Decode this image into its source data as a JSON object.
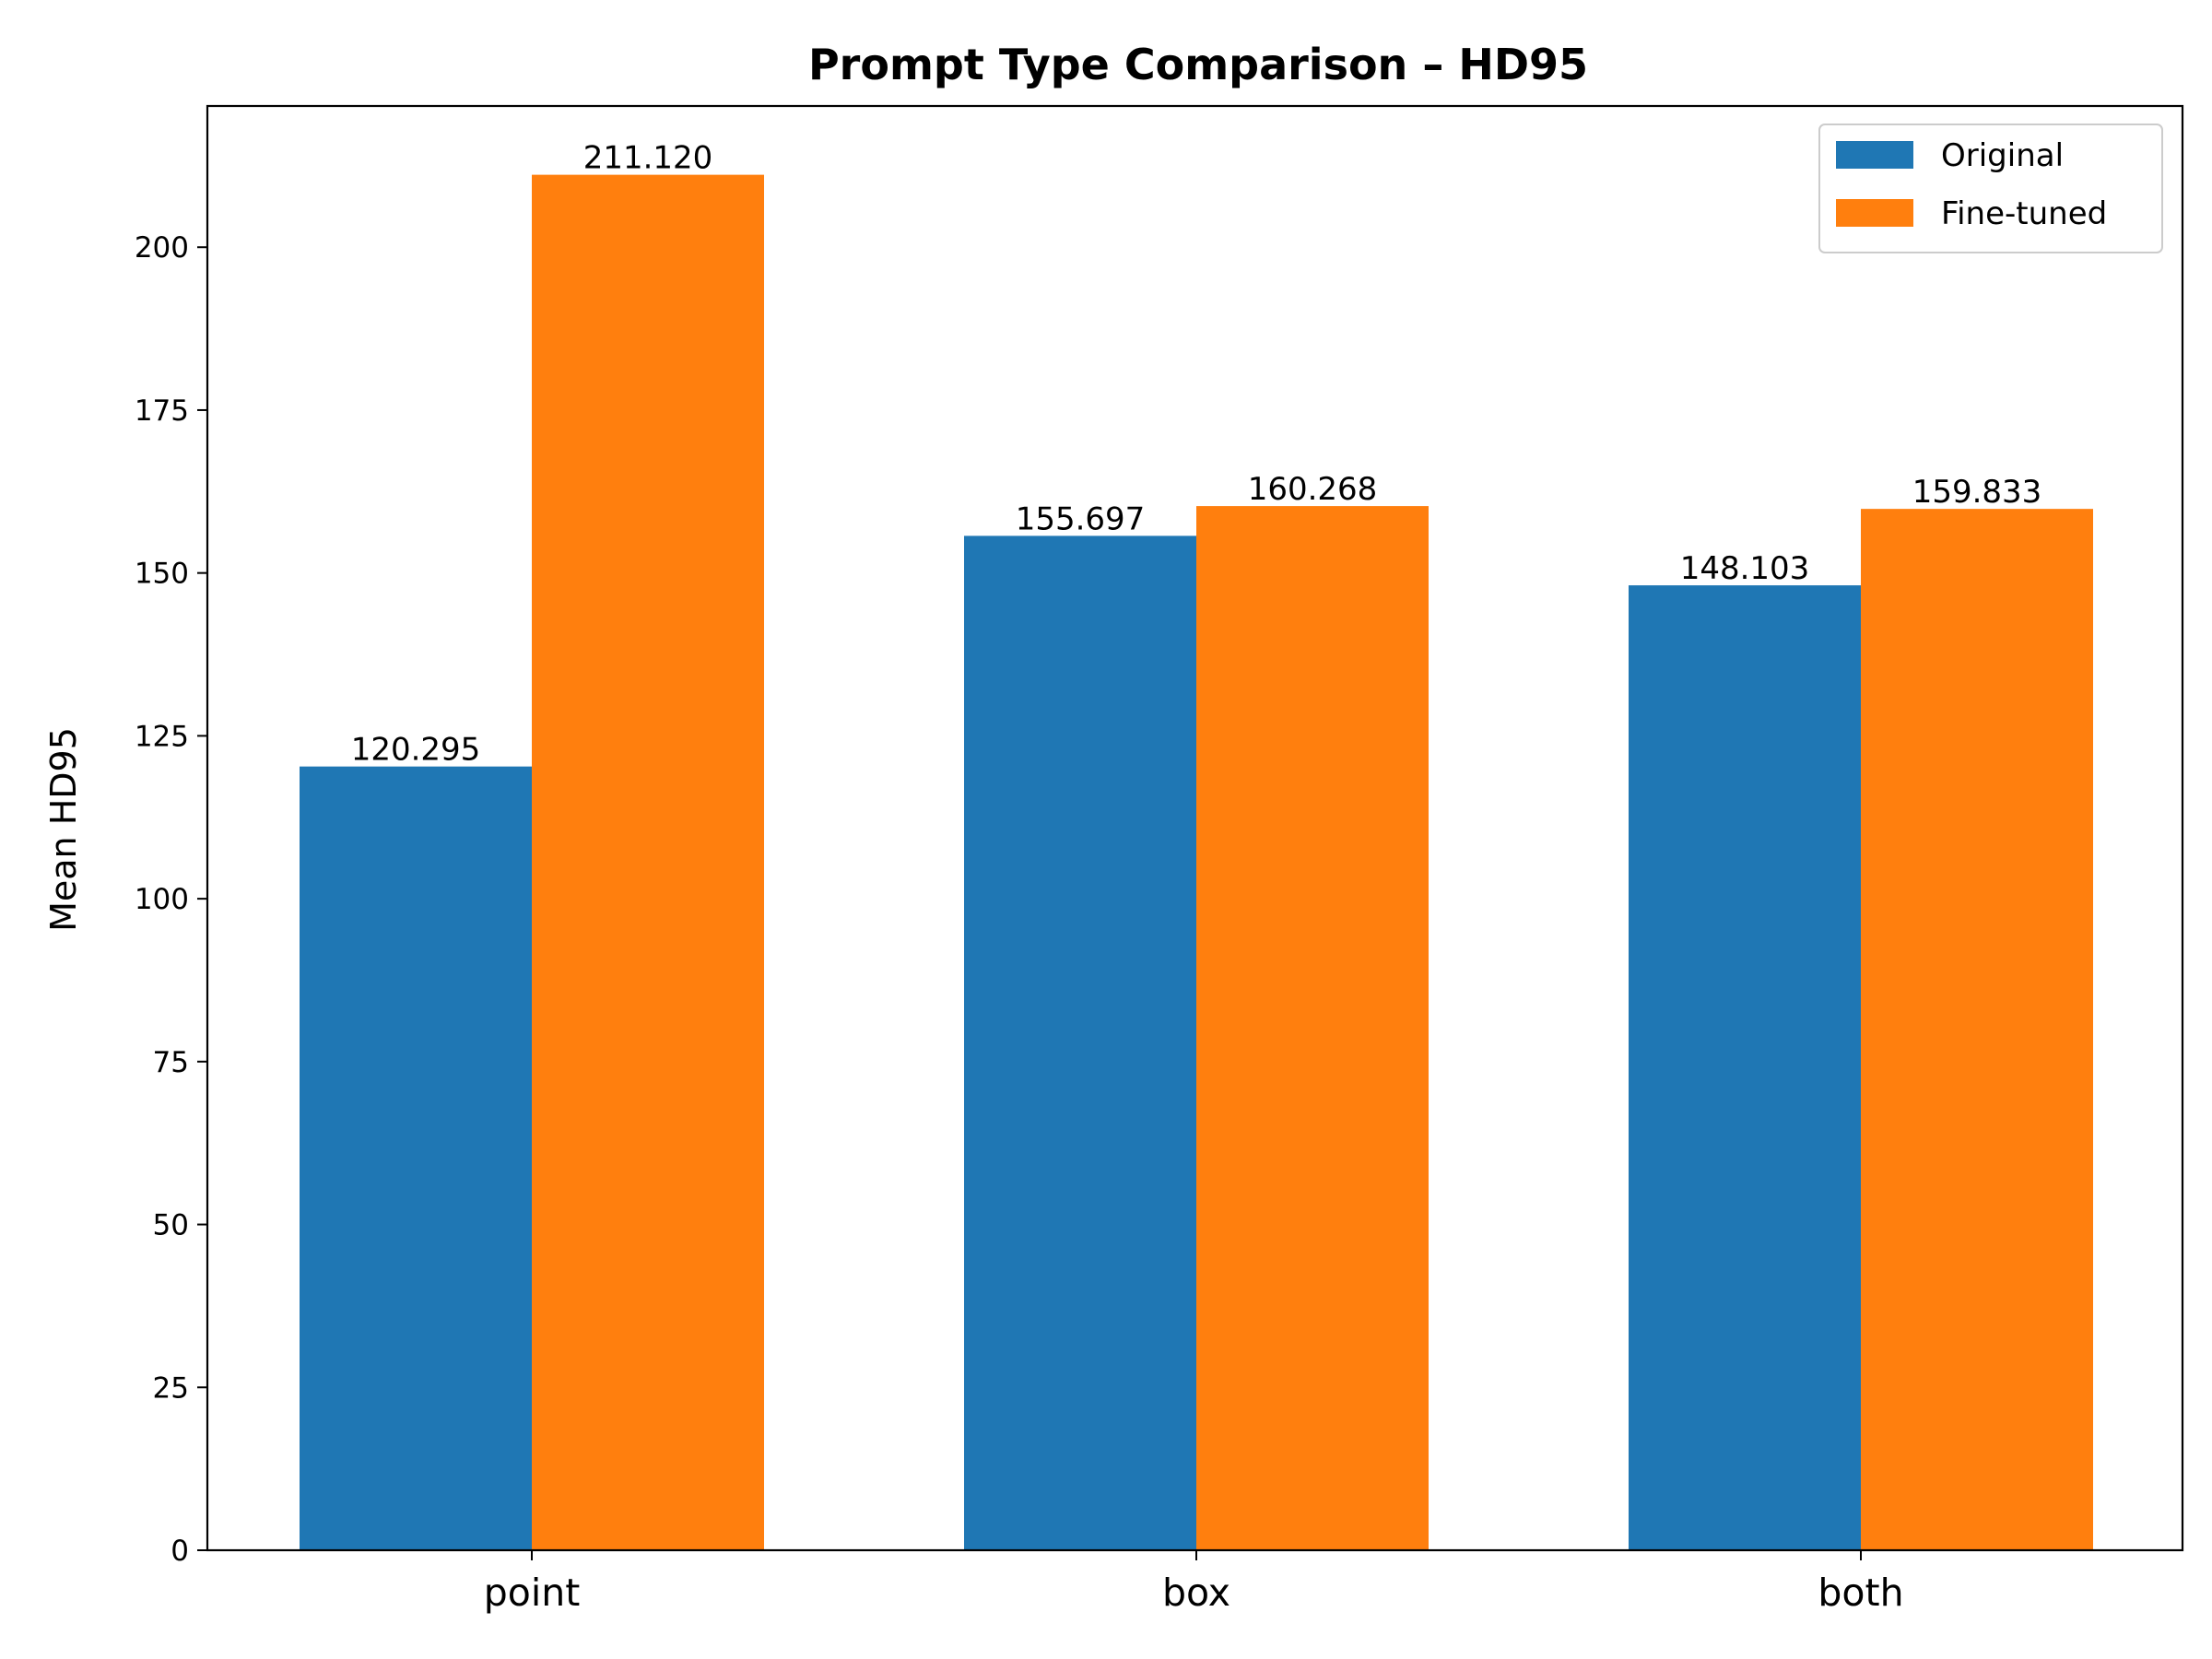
{
  "chart_data": {
    "type": "bar",
    "title": "Prompt Type Comparison – HD95",
    "xlabel": "",
    "ylabel": "Mean HD95",
    "categories": [
      "point",
      "box",
      "both"
    ],
    "series": [
      {
        "name": "Original",
        "color": "#1f77b4",
        "values": [
          120.295,
          155.697,
          148.103
        ],
        "labels": [
          "120.295",
          "155.697",
          "148.103"
        ]
      },
      {
        "name": "Fine-tuned",
        "color": "#ff7f0e",
        "values": [
          211.12,
          160.268,
          159.833
        ],
        "labels": [
          "211.120",
          "160.268",
          "159.833"
        ]
      }
    ],
    "ylim": [
      0,
      221.676
    ],
    "yticks": [
      0,
      25,
      50,
      75,
      100,
      125,
      150,
      175,
      200
    ],
    "ytick_labels": [
      "0",
      "25",
      "50",
      "75",
      "100",
      "125",
      "150",
      "175",
      "200"
    ],
    "grid": false,
    "legend_position": "top-right"
  }
}
